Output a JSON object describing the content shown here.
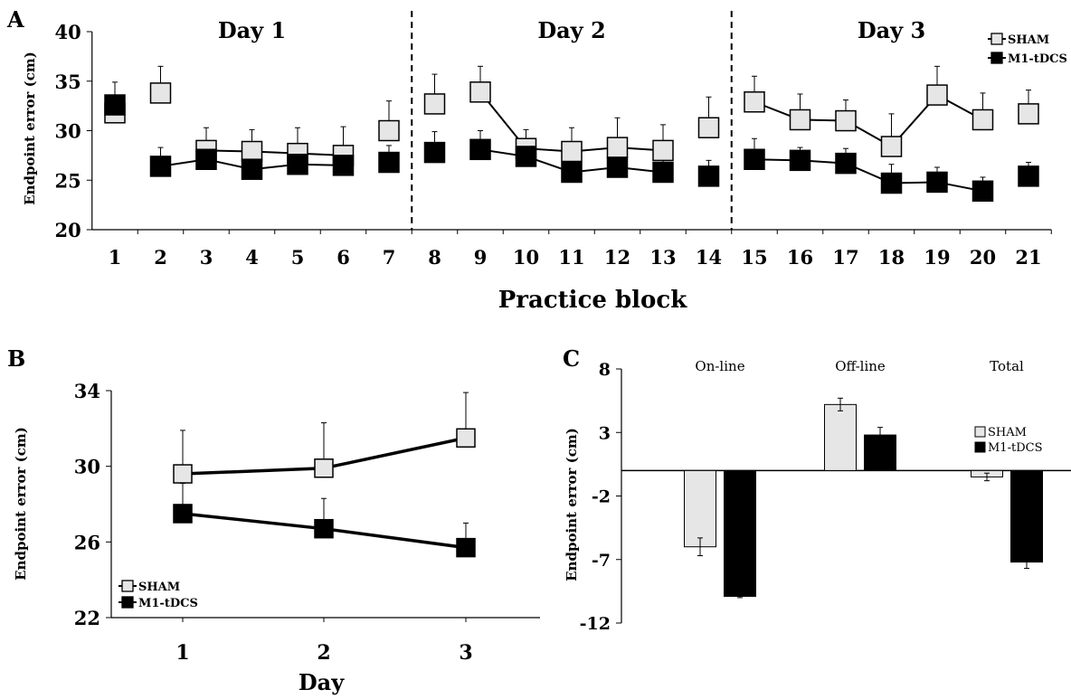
{
  "chart_data": [
    {
      "panel_label": "A",
      "type": "line",
      "xlabel": "Practice block",
      "ylabel": "Endpoint error (cm)",
      "ylim": [
        20,
        40
      ],
      "yticks": [
        20,
        25,
        30,
        35,
        40
      ],
      "x": [
        1,
        2,
        3,
        4,
        5,
        6,
        7,
        8,
        9,
        10,
        11,
        12,
        13,
        14,
        15,
        16,
        17,
        18,
        19,
        20,
        21
      ],
      "day_labels": [
        "Day 1",
        "Day 2",
        "Day 3"
      ],
      "day_blocks": [
        [
          1,
          7
        ],
        [
          8,
          14
        ],
        [
          15,
          21
        ]
      ],
      "legend_placement": "top-right",
      "grid": false,
      "series": [
        {
          "name": "SHAM",
          "marker_color": "#e6e6e6",
          "values": [
            31.8,
            33.8,
            28.0,
            27.9,
            27.7,
            27.5,
            30.0,
            32.7,
            33.9,
            28.2,
            27.9,
            28.3,
            28.0,
            30.3,
            32.9,
            31.1,
            31.0,
            28.4,
            33.6,
            31.1,
            31.7
          ],
          "error": [
            0.0,
            2.7,
            2.3,
            2.2,
            2.6,
            2.9,
            3.0,
            3.0,
            2.6,
            1.9,
            2.4,
            3.0,
            2.6,
            3.1,
            2.6,
            2.6,
            2.1,
            3.3,
            2.9,
            2.7,
            2.4
          ]
        },
        {
          "name": "M1-tDCS",
          "marker_color": "#000000",
          "values": [
            32.6,
            26.4,
            27.1,
            26.1,
            26.6,
            26.5,
            26.8,
            27.8,
            28.1,
            27.4,
            25.8,
            26.3,
            25.8,
            25.4,
            27.1,
            27.0,
            26.7,
            24.7,
            24.8,
            23.9,
            25.4
          ],
          "error": [
            2.3,
            1.9,
            1.9,
            1.9,
            2.1,
            2.0,
            1.7,
            2.1,
            1.9,
            1.6,
            1.4,
            1.5,
            1.9,
            1.6,
            2.1,
            1.3,
            1.5,
            1.9,
            1.5,
            1.4,
            1.4
          ]
        }
      ],
      "connected_segments": {
        "SHAM": [
          [
            3,
            6
          ],
          [
            9,
            13
          ],
          [
            15,
            20
          ]
        ],
        "M1-tDCS": [
          [
            2,
            6
          ],
          [
            9,
            13
          ],
          [
            15,
            20
          ]
        ]
      }
    },
    {
      "panel_label": "B",
      "type": "line",
      "xlabel": "Day",
      "ylabel": "Endpoint error (cm)",
      "categories": [
        "1",
        "2",
        "3"
      ],
      "ylim": [
        22,
        34
      ],
      "yticks": [
        22,
        26,
        30,
        34
      ],
      "legend_placement": "bottom-left",
      "grid": false,
      "series": [
        {
          "name": "SHAM",
          "marker_color": "#e6e6e6",
          "values": [
            29.6,
            29.9,
            31.5
          ],
          "error": [
            2.3,
            2.4,
            2.4
          ]
        },
        {
          "name": "M1-tDCS",
          "marker_color": "#000000",
          "values": [
            27.5,
            26.7,
            25.7
          ],
          "error": [
            1.6,
            1.6,
            1.3
          ]
        }
      ]
    },
    {
      "panel_label": "C",
      "type": "bar",
      "ylabel": "Endpoint error (cm)",
      "categories": [
        "On-line",
        "Off-line",
        "Total"
      ],
      "ylim": [
        -12,
        8
      ],
      "yticks": [
        -12,
        -7,
        -2,
        3,
        8
      ],
      "legend_placement": "right",
      "grid": false,
      "series": [
        {
          "name": "SHAM",
          "color": "#e6e6e6",
          "values": [
            -6.0,
            5.2,
            -0.5
          ],
          "error": [
            0.7,
            0.5,
            0.3
          ]
        },
        {
          "name": "M1-tDCS",
          "color": "#000000",
          "values": [
            -9.9,
            2.8,
            -7.2
          ],
          "error": [
            0.1,
            0.6,
            0.5
          ]
        }
      ]
    }
  ]
}
